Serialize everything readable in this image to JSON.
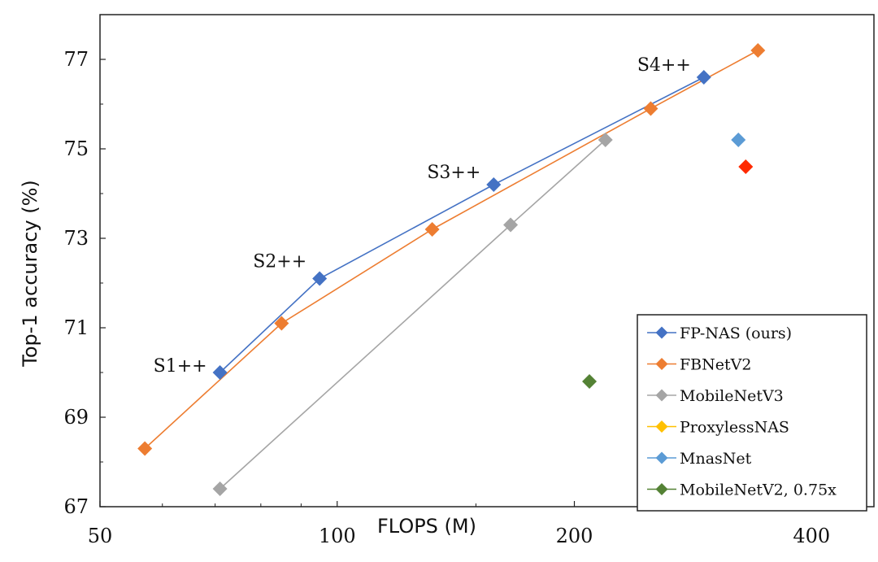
{
  "chart_data": {
    "type": "line",
    "title": "",
    "xlabel": "FLOPS (M)",
    "ylabel": "Top-1 accuracy (%)",
    "x_scale": "log",
    "xlim": [
      50,
      480
    ],
    "ylim": [
      67,
      78
    ],
    "x_ticks": [
      50,
      100,
      200,
      400
    ],
    "y_ticks": [
      67,
      69,
      71,
      73,
      75,
      77
    ],
    "grid": false,
    "legend_position": "bottom-right",
    "series": [
      {
        "name": "FP-NAS (ours)",
        "color": "#4472C4",
        "line": true,
        "points": [
          {
            "x": 71,
            "y": 70.0
          },
          {
            "x": 95,
            "y": 72.1
          },
          {
            "x": 158,
            "y": 74.2
          },
          {
            "x": 292,
            "y": 76.6
          }
        ]
      },
      {
        "name": "FBNetV2",
        "color": "#ED7D31",
        "line": true,
        "points": [
          {
            "x": 57,
            "y": 68.3
          },
          {
            "x": 85,
            "y": 71.1
          },
          {
            "x": 132,
            "y": 73.2
          },
          {
            "x": 250,
            "y": 75.9
          },
          {
            "x": 342,
            "y": 77.2
          }
        ]
      },
      {
        "name": "MobileNetV3",
        "color": "#A5A5A5",
        "line": true,
        "points": [
          {
            "x": 71,
            "y": 67.4
          },
          {
            "x": 166,
            "y": 73.3
          },
          {
            "x": 219,
            "y": 75.2
          }
        ]
      },
      {
        "name": "ProxylessNAS",
        "color": "#FFC000",
        "line": false,
        "points": []
      },
      {
        "name": "MnasNet",
        "color": "#5B9BD5",
        "line": false,
        "points": [
          {
            "x": 323,
            "y": 75.2
          }
        ]
      },
      {
        "name": "MobileNetV2, 0.75x",
        "color": "#548235",
        "line": false,
        "points": [
          {
            "x": 209,
            "y": 69.8
          }
        ]
      }
    ],
    "extra_points": [
      {
        "x": 330,
        "y": 74.6,
        "color": "#FF2A00"
      }
    ],
    "annotations": [
      {
        "text": "S1++",
        "x": 71,
        "y": 70.0
      },
      {
        "text": "S2++",
        "x": 95,
        "y": 72.1
      },
      {
        "text": "S3++",
        "x": 158,
        "y": 74.2
      },
      {
        "text": "S4++",
        "x": 292,
        "y": 76.6
      }
    ]
  }
}
